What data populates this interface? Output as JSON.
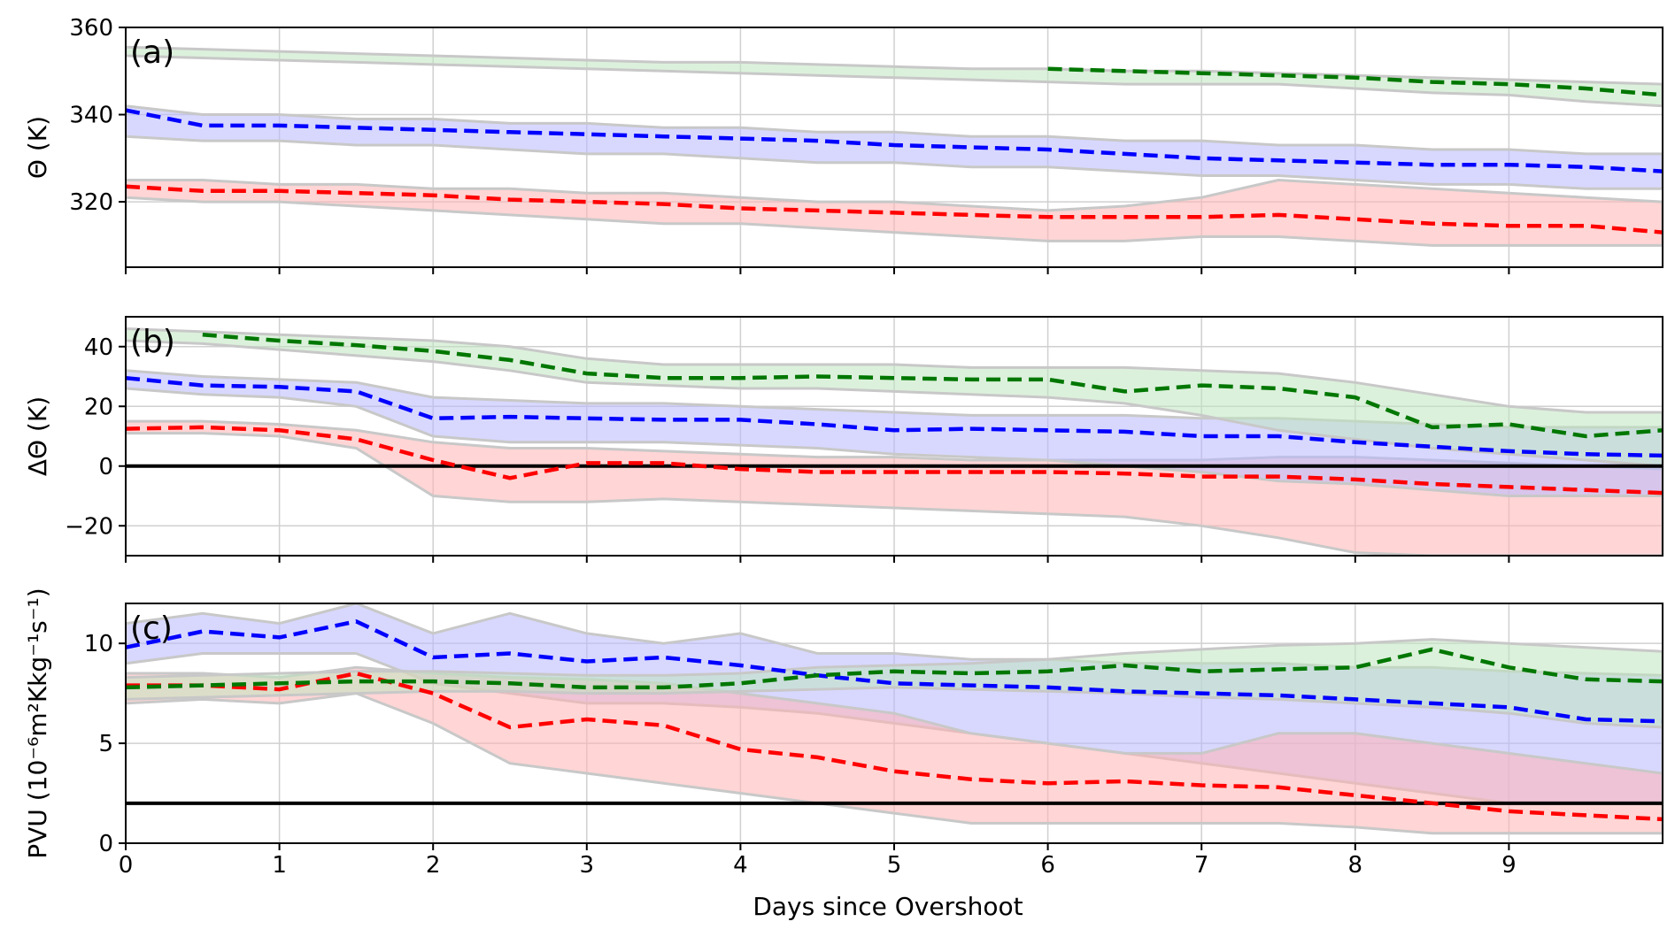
{
  "figure": {
    "xlabel": "Days since Overshoot",
    "x_tick_labels": [
      "0",
      "1",
      "2",
      "3",
      "4",
      "5",
      "6",
      "7",
      "8",
      "9"
    ]
  },
  "colors": {
    "red": "#ff0000",
    "blue": "#0000ff",
    "green": "#007700",
    "red_fill": "#ffb3b3",
    "blue_fill": "#b8b8ff",
    "green_fill": "#bfe6bf",
    "band_edge": "#c8c8c8",
    "grid": "#d0d0d0",
    "reference_line": "#000000"
  },
  "chart_data": [
    {
      "type": "line",
      "panel_label": "(a)",
      "title": "",
      "xlabel": "",
      "ylabel": "Θ (K)",
      "xlim": [
        0,
        10
      ],
      "ylim": [
        305,
        360
      ],
      "y_ticks": [
        320,
        340,
        360
      ],
      "y_tick_labels": [
        "320",
        "340",
        "360"
      ],
      "grid": true,
      "x": [
        0,
        0.5,
        1,
        1.5,
        2,
        2.5,
        3,
        3.5,
        4,
        4.5,
        5,
        5.5,
        6,
        6.5,
        7,
        7.5,
        8,
        8.5,
        9,
        9.5,
        10
      ],
      "series": [
        {
          "color": "red",
          "style": "dashed",
          "values": [
            323.5,
            322.5,
            322.5,
            322,
            321.5,
            320.5,
            320,
            319.5,
            318.5,
            318,
            317.5,
            317,
            316.5,
            316.5,
            316.5,
            317,
            316,
            315,
            314.5,
            314.5,
            313
          ],
          "band_lower": [
            321,
            320,
            320,
            319,
            318,
            317,
            316,
            315,
            315,
            314,
            313,
            312,
            311,
            311,
            312,
            312,
            311,
            310,
            310,
            310,
            310
          ],
          "band_upper": [
            325,
            325,
            324,
            324,
            323,
            323,
            322,
            322,
            321,
            320,
            320,
            319,
            318,
            319,
            321,
            325,
            324,
            323,
            322,
            321,
            320
          ]
        },
        {
          "color": "blue",
          "style": "dashed",
          "values": [
            341,
            337.5,
            337.5,
            337,
            336.5,
            336,
            335.5,
            335,
            334.5,
            334,
            333,
            332.5,
            332,
            331,
            330,
            329.5,
            329,
            328.5,
            328.5,
            328,
            327
          ],
          "band_lower": [
            335,
            334,
            334,
            333,
            333,
            332,
            331,
            331,
            330,
            329,
            329,
            328,
            328,
            327,
            326,
            326,
            325,
            324,
            324,
            323,
            323
          ],
          "band_upper": [
            342,
            340,
            340,
            339,
            339,
            338,
            338,
            337,
            337,
            336,
            336,
            335,
            335,
            334,
            334,
            333,
            333,
            332,
            332,
            331,
            331
          ]
        },
        {
          "color": "green",
          "style": "dashed",
          "values": [
            null,
            null,
            null,
            null,
            null,
            null,
            null,
            null,
            null,
            null,
            null,
            null,
            350.5,
            350,
            349.5,
            349,
            348.5,
            347.5,
            347,
            346,
            344.5
          ],
          "band_lower": [
            353.5,
            353,
            352.5,
            352,
            351.5,
            351,
            350.5,
            350,
            349.5,
            349,
            348.5,
            348,
            347.5,
            347,
            347,
            347,
            346,
            345,
            344.5,
            343,
            342
          ],
          "band_upper": [
            355.5,
            355,
            354.5,
            354,
            353.5,
            353,
            352.5,
            352,
            352,
            351.5,
            351,
            350.5,
            350.5,
            350,
            350,
            349.5,
            349,
            348.5,
            348,
            347.5,
            347
          ]
        }
      ]
    },
    {
      "type": "line",
      "panel_label": "(b)",
      "title": "",
      "xlabel": "",
      "ylabel": "ΔΘ (K)",
      "xlim": [
        0,
        10
      ],
      "ylim": [
        -30,
        50
      ],
      "y_ticks": [
        -20,
        0,
        20,
        40
      ],
      "y_tick_labels": [
        "−20",
        "0",
        "20",
        "40"
      ],
      "grid": true,
      "reference_line": 0,
      "x": [
        0,
        0.5,
        1,
        1.5,
        2,
        2.5,
        3,
        3.5,
        4,
        4.5,
        5,
        5.5,
        6,
        6.5,
        7,
        7.5,
        8,
        8.5,
        9,
        9.5,
        10
      ],
      "series": [
        {
          "color": "red",
          "style": "dashed",
          "values": [
            12.5,
            13,
            12,
            9,
            2,
            -4,
            1,
            1,
            -1,
            -2,
            -2,
            -2,
            -2,
            -2.5,
            -3.5,
            -3.5,
            -4.5,
            -6,
            -7,
            -8,
            -9
          ],
          "band_lower": [
            11,
            11,
            10,
            6,
            -10,
            -12,
            -12,
            -11,
            -12,
            -13,
            -14,
            -15,
            -16,
            -17,
            -20,
            -24,
            -29,
            -30,
            -30,
            -30,
            -30
          ],
          "band_upper": [
            15,
            15,
            14,
            12,
            8,
            6,
            6,
            5,
            4,
            3,
            3,
            2,
            2,
            2,
            2,
            3,
            3,
            2,
            1,
            0,
            -1
          ]
        },
        {
          "color": "blue",
          "style": "dashed",
          "values": [
            29.5,
            27,
            26.5,
            25,
            16,
            16.5,
            16,
            15.5,
            15.5,
            14,
            12,
            12.5,
            12,
            11.5,
            10,
            10,
            8,
            6.5,
            5,
            4,
            3.5
          ],
          "band_lower": [
            26,
            24,
            23,
            20,
            10,
            8,
            8,
            8,
            7,
            6,
            4,
            3,
            2,
            0,
            -2,
            -5,
            -6,
            -8,
            -10,
            -10,
            -10
          ],
          "band_upper": [
            32,
            30,
            29,
            28,
            23,
            22,
            21,
            21,
            20,
            19,
            18,
            17,
            17,
            17,
            16,
            16,
            15,
            14,
            13,
            13,
            13
          ]
        },
        {
          "color": "green",
          "style": "dashed",
          "values": [
            null,
            44,
            42,
            40.5,
            38.5,
            35.5,
            31,
            29.5,
            29.5,
            30,
            29.5,
            29,
            29,
            25,
            27,
            26,
            23,
            13,
            14,
            10,
            12
          ],
          "band_lower": [
            42,
            41,
            39,
            37,
            35,
            32,
            28,
            27,
            26,
            26,
            25,
            24,
            23,
            21,
            17,
            12,
            9,
            6,
            4,
            2,
            0
          ],
          "band_upper": [
            46,
            45,
            44,
            43,
            42,
            40,
            36,
            34,
            34,
            34,
            34,
            33,
            33,
            33,
            32,
            31,
            28,
            24,
            20,
            18,
            18
          ]
        }
      ]
    },
    {
      "type": "line",
      "panel_label": "(c)",
      "title": "",
      "xlabel": "Days since Overshoot",
      "ylabel": "PVU (10⁻⁶m²Kkg⁻¹s⁻¹)",
      "xlim": [
        0,
        10
      ],
      "ylim": [
        0,
        12
      ],
      "y_ticks": [
        0,
        5,
        10
      ],
      "y_tick_labels": [
        "0",
        "5",
        "10"
      ],
      "grid": true,
      "reference_line": 2,
      "x": [
        0,
        0.5,
        1,
        1.5,
        2,
        2.5,
        3,
        3.5,
        4,
        4.5,
        5,
        5.5,
        6,
        6.5,
        7,
        7.5,
        8,
        8.5,
        9,
        9.5,
        10
      ],
      "series": [
        {
          "color": "blue",
          "style": "dashed",
          "values": [
            9.8,
            10.6,
            10.3,
            11.1,
            9.3,
            9.5,
            9.1,
            9.3,
            8.9,
            8.4,
            8.0,
            7.9,
            7.8,
            7.6,
            7.5,
            7.4,
            7.2,
            7.0,
            6.8,
            6.2,
            6.1
          ],
          "band_lower": [
            9.0,
            9.5,
            9.5,
            9.5,
            8.0,
            7.5,
            7.0,
            7.0,
            6.8,
            6.5,
            6.0,
            5.5,
            5.0,
            4.5,
            4.0,
            3.5,
            3.0,
            2.5,
            2.0,
            2.0,
            2.0
          ],
          "band_upper": [
            11.0,
            11.5,
            11.0,
            12.0,
            10.5,
            11.5,
            10.5,
            10.0,
            10.5,
            9.5,
            9.5,
            9.2,
            9.2,
            9.0,
            9.0,
            9.0,
            8.8,
            8.8,
            8.6,
            8.5,
            8.4
          ]
        },
        {
          "color": "red",
          "style": "dashed",
          "values": [
            7.9,
            7.9,
            7.7,
            8.5,
            7.5,
            5.8,
            6.2,
            5.9,
            4.7,
            4.3,
            3.6,
            3.2,
            3.0,
            3.1,
            2.9,
            2.8,
            2.4,
            2.0,
            1.6,
            1.4,
            1.2
          ],
          "band_lower": [
            7.0,
            7.2,
            7.0,
            7.5,
            6.0,
            4.0,
            3.5,
            3.0,
            2.5,
            2.0,
            1.5,
            1.0,
            1.0,
            1.0,
            1.0,
            1.0,
            0.8,
            0.5,
            0.5,
            0.5,
            0.5
          ],
          "band_upper": [
            8.5,
            8.5,
            8.3,
            8.8,
            8.5,
            8.3,
            8.2,
            8.0,
            7.5,
            7.0,
            6.5,
            5.5,
            5.0,
            4.5,
            4.5,
            5.5,
            5.5,
            5.0,
            4.5,
            4.0,
            3.5
          ]
        },
        {
          "color": "green",
          "style": "dashed",
          "values": [
            7.8,
            7.9,
            8.0,
            8.1,
            8.1,
            8.0,
            7.8,
            7.8,
            8.0,
            8.4,
            8.6,
            8.5,
            8.6,
            8.9,
            8.6,
            8.7,
            8.8,
            9.7,
            8.8,
            8.2,
            8.1
          ],
          "band_lower": [
            7.2,
            7.3,
            7.4,
            7.5,
            7.6,
            7.6,
            7.5,
            7.5,
            7.6,
            7.7,
            7.8,
            7.7,
            7.6,
            7.5,
            7.3,
            7.2,
            7.0,
            6.8,
            6.5,
            6.0,
            5.8
          ],
          "band_upper": [
            8.3,
            8.4,
            8.5,
            8.6,
            8.6,
            8.5,
            8.4,
            8.4,
            8.5,
            8.8,
            8.9,
            9.0,
            9.2,
            9.5,
            9.7,
            9.9,
            10.0,
            10.2,
            10.0,
            9.8,
            9.6
          ]
        }
      ]
    }
  ]
}
